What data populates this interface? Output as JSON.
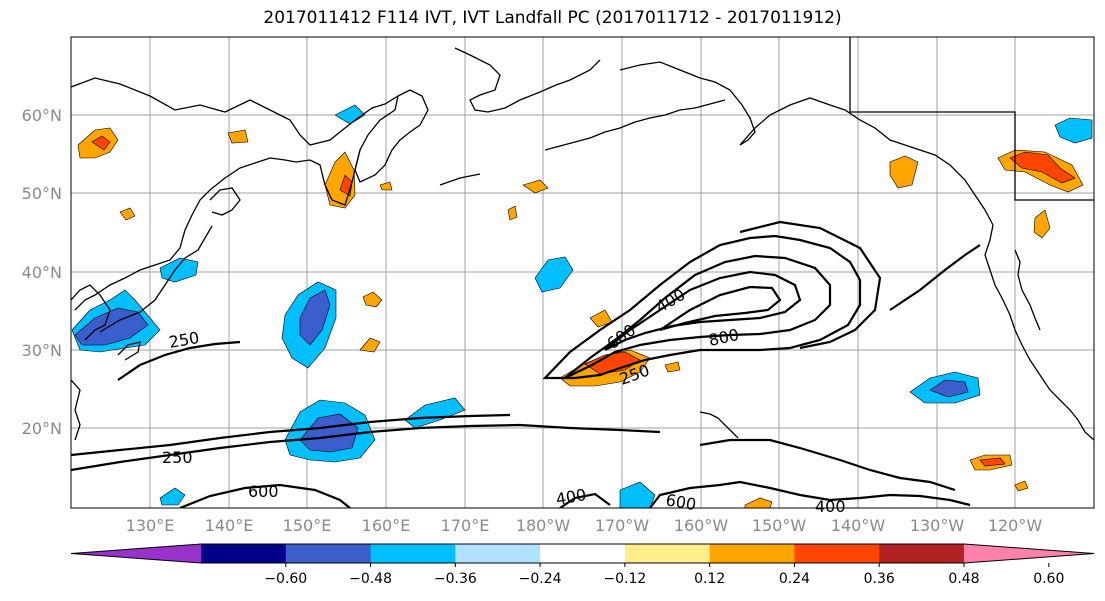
{
  "title": "2017011412 F114 IVT, IVT Landfall PC (2017011712 - 2017011912)",
  "lat_labels": [
    "60°N",
    "50°N",
    "40°N",
    "30°N",
    "20°N"
  ],
  "lon_labels": [
    "130°E",
    "140°E",
    "150°E",
    "160°E",
    "170°E",
    "180°W",
    "170°W",
    "160°W",
    "150°W",
    "140°W",
    "130°W",
    "120°W"
  ],
  "contour_labels": [
    "400",
    "600",
    "800",
    "250",
    "250",
    "250",
    "600",
    "400",
    "600",
    "400"
  ],
  "colorbar": {
    "colors": [
      "#9932cc",
      "#00008b",
      "#3a5fcd",
      "#00bfff",
      "#b0e2ff",
      "#ffffff",
      "#ffec8b",
      "#ffa500",
      "#ff4500",
      "#b22222",
      "#ff82ab"
    ],
    "tick_labels": [
      "−0.60",
      "−0.48",
      "−0.36",
      "−0.24",
      "−0.12",
      "0.12",
      "0.24",
      "0.36",
      "0.48",
      "0.60"
    ]
  }
}
